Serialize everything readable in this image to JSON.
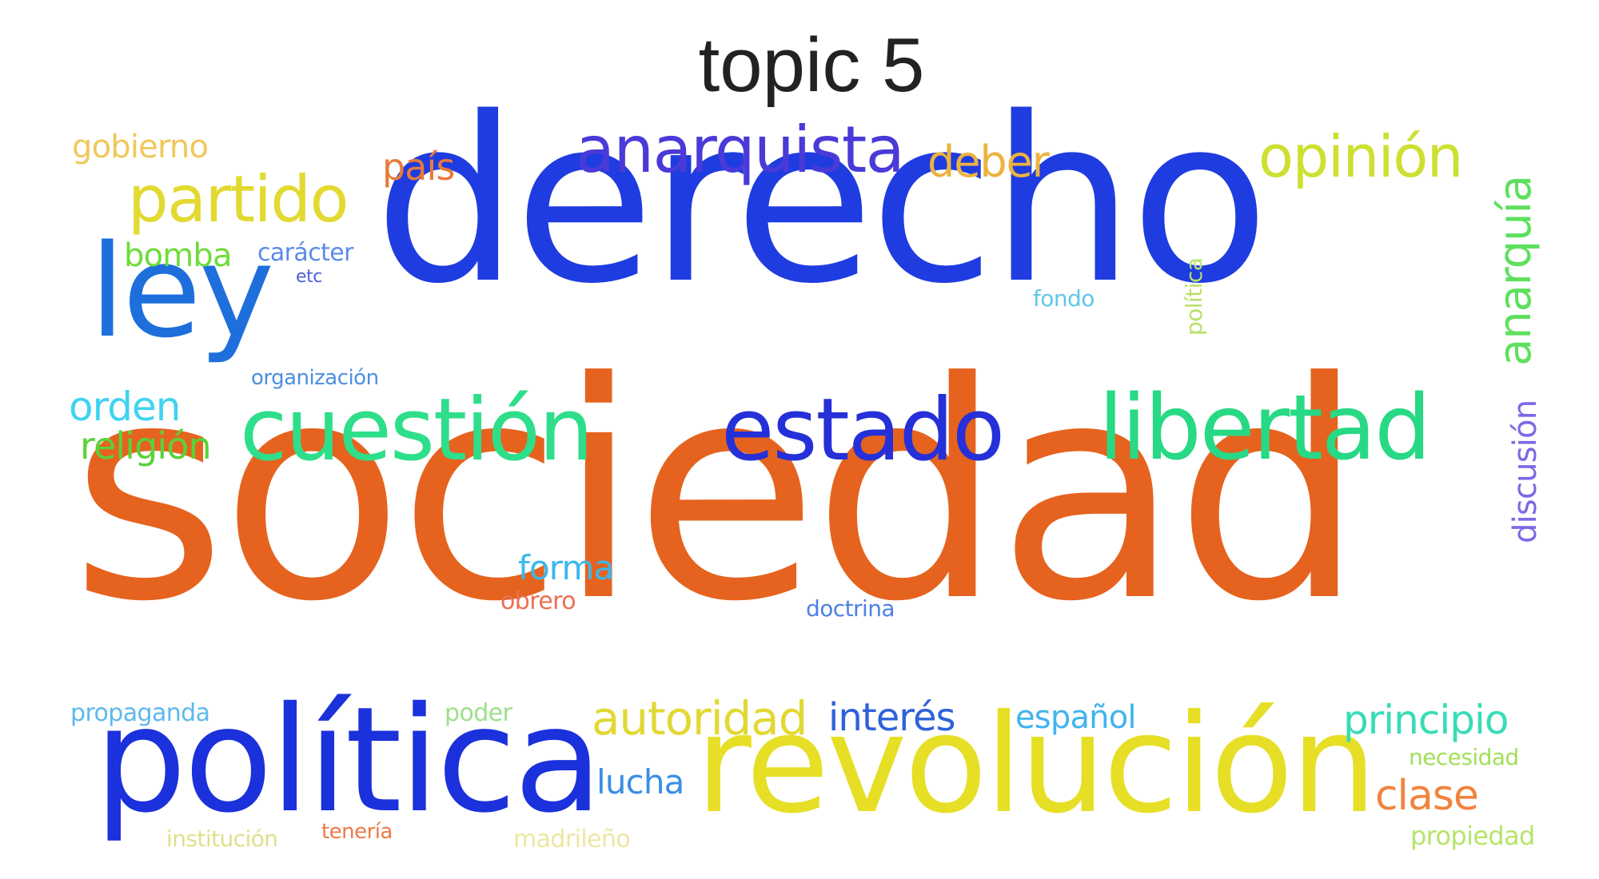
{
  "title": "topic 5",
  "words": [
    {
      "text": "sociedad",
      "color": "#e5631e"
    },
    {
      "text": "derecho",
      "color": "#1f3ce0"
    },
    {
      "text": "política",
      "color": "#1b31db"
    },
    {
      "text": "revolución",
      "color": "#e6df26"
    },
    {
      "text": "ley",
      "color": "#1e6fdc"
    },
    {
      "text": "cuestión",
      "color": "#2ede8a"
    },
    {
      "text": "estado",
      "color": "#2530d8"
    },
    {
      "text": "libertad",
      "color": "#27d985"
    },
    {
      "text": "anarquista",
      "color": "#4a3ad8"
    },
    {
      "text": "partido",
      "color": "#e2d931"
    },
    {
      "text": "opinión",
      "color": "#cde031"
    },
    {
      "text": "autoridad",
      "color": "#e2d835"
    },
    {
      "text": "anarquía",
      "color": "#5ee05e",
      "vertical": true
    },
    {
      "text": "deber",
      "color": "#ecb33e"
    },
    {
      "text": "país",
      "color": "#e87a3b"
    },
    {
      "text": "gobierno",
      "color": "#f0c85a"
    },
    {
      "text": "bomba",
      "color": "#6fdc3a"
    },
    {
      "text": "carácter",
      "color": "#5c8ae6"
    },
    {
      "text": "etc",
      "color": "#4f5ed6"
    },
    {
      "text": "fondo",
      "color": "#5fc7ea"
    },
    {
      "text": "política",
      "color": "#b8e06a",
      "vertical": true
    },
    {
      "text": "organización",
      "color": "#4c8fe0"
    },
    {
      "text": "orden",
      "color": "#3fd3f0"
    },
    {
      "text": "religión",
      "color": "#5ad23a"
    },
    {
      "text": "discusión",
      "color": "#7a6ae6",
      "vertical": true
    },
    {
      "text": "forma",
      "color": "#3bb8ec"
    },
    {
      "text": "obrero",
      "color": "#ec6f52"
    },
    {
      "text": "doctrina",
      "color": "#4f80e6"
    },
    {
      "text": "propaganda",
      "color": "#5db8ee"
    },
    {
      "text": "poder",
      "color": "#9be08a"
    },
    {
      "text": "interés",
      "color": "#2f62db"
    },
    {
      "text": "español",
      "color": "#42b4ee"
    },
    {
      "text": "principio",
      "color": "#38dcb5"
    },
    {
      "text": "necesidad",
      "color": "#a1e05a"
    },
    {
      "text": "lucha",
      "color": "#3a8ee4"
    },
    {
      "text": "clase",
      "color": "#f0843f"
    },
    {
      "text": "institución",
      "color": "#dfe08a"
    },
    {
      "text": "tenería",
      "color": "#ec7a48"
    },
    {
      "text": "madrileño",
      "color": "#ede6a0"
    },
    {
      "text": "propiedad",
      "color": "#b6e46c"
    }
  ]
}
